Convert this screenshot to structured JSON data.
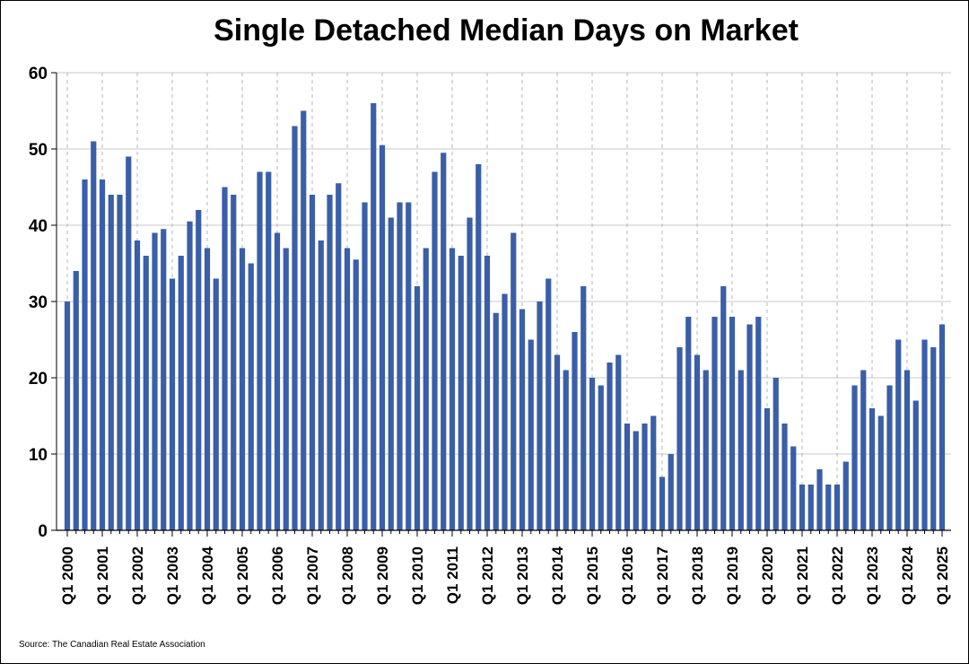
{
  "chart_data": {
    "type": "bar",
    "title": "Single Detached Median Days on Market",
    "source": "Source: The Canadian Real Estate Association",
    "xlabel": "",
    "ylabel": "",
    "ylim": [
      0,
      60
    ],
    "yticks": [
      0,
      10,
      20,
      30,
      40,
      50,
      60
    ],
    "grid": true,
    "legend": "none",
    "bar_color": "#3a5ea8",
    "x_tick_labels": [
      "Q1 2000",
      "Q1 2001",
      "Q1 2002",
      "Q1 2003",
      "Q1 2004",
      "Q1 2005",
      "Q1 2006",
      "Q1 2007",
      "Q1 2008",
      "Q1 2009",
      "Q1 2010",
      "Q1 2011",
      "Q1 2012",
      "Q1 2013",
      "Q1 2014",
      "Q1 2015",
      "Q1 2016",
      "Q1 2017",
      "Q1 2018",
      "Q1 2019",
      "Q1 2020",
      "Q1 2021",
      "Q1 2022",
      "Q1 2023",
      "Q1 2024",
      "Q1 2025"
    ],
    "categories": [
      "Q1 2000",
      "Q2 2000",
      "Q3 2000",
      "Q4 2000",
      "Q1 2001",
      "Q2 2001",
      "Q3 2001",
      "Q4 2001",
      "Q1 2002",
      "Q2 2002",
      "Q3 2002",
      "Q4 2002",
      "Q1 2003",
      "Q2 2003",
      "Q3 2003",
      "Q4 2003",
      "Q1 2004",
      "Q2 2004",
      "Q3 2004",
      "Q4 2004",
      "Q1 2005",
      "Q2 2005",
      "Q3 2005",
      "Q4 2005",
      "Q1 2006",
      "Q2 2006",
      "Q3 2006",
      "Q4 2006",
      "Q1 2007",
      "Q2 2007",
      "Q3 2007",
      "Q4 2007",
      "Q1 2008",
      "Q2 2008",
      "Q3 2008",
      "Q4 2008",
      "Q1 2009",
      "Q2 2009",
      "Q3 2009",
      "Q4 2009",
      "Q1 2010",
      "Q2 2010",
      "Q3 2010",
      "Q4 2010",
      "Q1 2011",
      "Q2 2011",
      "Q3 2011",
      "Q4 2011",
      "Q1 2012",
      "Q2 2012",
      "Q3 2012",
      "Q4 2012",
      "Q1 2013",
      "Q2 2013",
      "Q3 2013",
      "Q4 2013",
      "Q1 2014",
      "Q2 2014",
      "Q3 2014",
      "Q4 2014",
      "Q1 2015",
      "Q2 2015",
      "Q3 2015",
      "Q4 2015",
      "Q1 2016",
      "Q2 2016",
      "Q3 2016",
      "Q4 2016",
      "Q1 2017",
      "Q2 2017",
      "Q3 2017",
      "Q4 2017",
      "Q1 2018",
      "Q2 2018",
      "Q3 2018",
      "Q4 2018",
      "Q1 2019",
      "Q2 2019",
      "Q3 2019",
      "Q4 2019",
      "Q1 2020",
      "Q2 2020",
      "Q3 2020",
      "Q4 2020",
      "Q1 2021",
      "Q2 2021",
      "Q3 2021",
      "Q4 2021",
      "Q1 2022",
      "Q2 2022",
      "Q3 2022",
      "Q4 2022",
      "Q1 2023",
      "Q2 2023",
      "Q3 2023",
      "Q4 2023",
      "Q1 2024",
      "Q2 2024",
      "Q3 2024",
      "Q4 2024",
      "Q1 2025"
    ],
    "values": [
      30,
      34,
      46,
      51,
      46,
      44,
      44,
      49,
      38,
      36,
      39,
      39.5,
      33,
      36,
      40.5,
      42,
      37,
      33,
      45,
      44,
      37,
      35,
      47,
      47,
      39,
      37,
      53,
      55,
      44,
      38,
      44,
      45.5,
      37,
      35.5,
      43,
      56,
      50.5,
      41,
      43,
      43,
      32,
      37,
      47,
      49.5,
      37,
      36,
      41,
      48,
      36,
      28.5,
      31,
      39,
      29,
      25,
      30,
      33,
      23,
      21,
      26,
      32,
      20,
      19,
      22,
      23,
      14,
      13,
      14,
      15,
      7,
      10,
      24,
      28,
      23,
      21,
      28,
      32,
      28,
      21,
      27,
      28,
      16,
      20,
      14,
      11,
      6,
      6,
      8,
      6,
      6,
      9,
      19,
      21,
      16,
      15,
      19,
      25,
      21,
      17,
      25,
      24,
      27
    ]
  }
}
